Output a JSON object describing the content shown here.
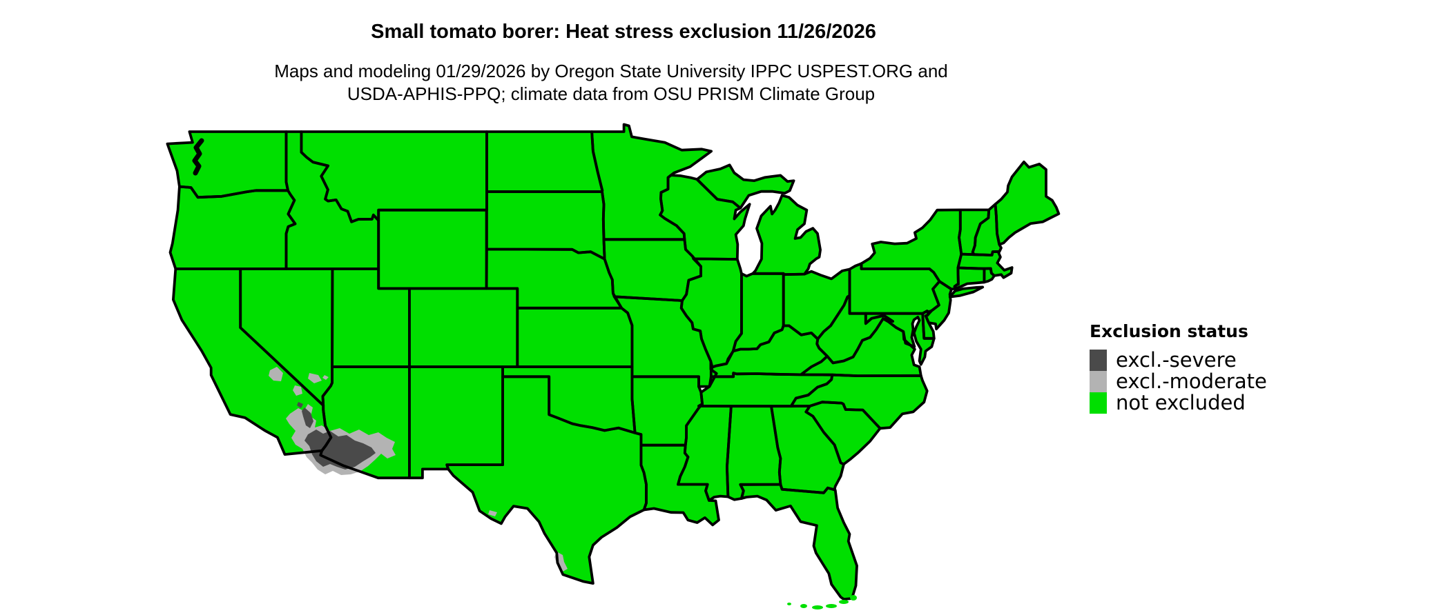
{
  "header": {
    "title": "Small tomato borer: Heat stress exclusion 11/26/2026",
    "subtitle_lines": [
      "Maps and modeling 01/29/2026 by Oregon State University IPPC USPEST.ORG and",
      "USDA-APHIS-PPQ; climate data from OSU PRISM Climate Group"
    ]
  },
  "legend": {
    "title": "Exclusion status",
    "items": [
      {
        "label": "excl.-severe",
        "color": "#4A4A4A"
      },
      {
        "label": "excl.-moderate",
        "color": "#B3B3B3"
      },
      {
        "label": "not excluded",
        "color": "#00DF00"
      }
    ]
  },
  "map": {
    "region": "Contiguous United States",
    "border_color": "#000000",
    "background_color": "#FFFFFF",
    "excluded_regions_visible": [
      {
        "status": "excl.-severe",
        "location": "southwestern Arizona and lower Colorado River desert"
      },
      {
        "status": "excl.-moderate",
        "location": "fringe of southwest desert core, southern Nevada / Death Valley patches, lower Rio Grande valley in south Texas"
      }
    ]
  }
}
